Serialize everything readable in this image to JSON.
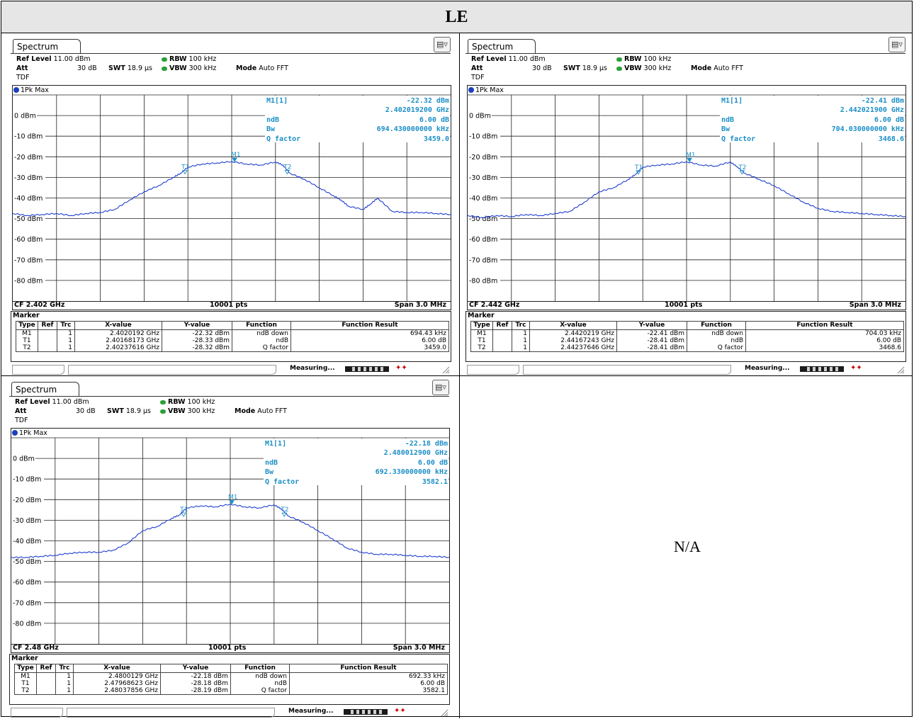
{
  "page_title": "LE",
  "empty_cell": "N/A",
  "colors": {
    "trace": "#1f3fd0",
    "readout": "#1c8fc7",
    "grid": "#222222"
  },
  "common": {
    "tab_label": "Spectrum",
    "ref_level_label": "Ref Level",
    "ref_level": "11.00 dBm",
    "att_label": "Att",
    "att": "30 dB",
    "swt_label": "SWT",
    "swt": "18.9 µs",
    "rbw_label": "RBW",
    "rbw": "100 kHz",
    "vbw_label": "VBW",
    "vbw": "300 kHz",
    "mode_label": "Mode",
    "mode": "Auto FFT",
    "tdf": "TDF",
    "trace_label": "1Pk Max",
    "pts": "10001 pts",
    "span": "Span 3.0 MHz",
    "marker_title": "Marker",
    "col_type": "Type",
    "col_ref": "Ref",
    "col_trc": "Trc",
    "col_x": "X-value",
    "col_y": "Y-value",
    "col_func": "Function",
    "col_result": "Function Result",
    "status": "Measuring..."
  },
  "panels": [
    {
      "cf": "CF 2.402 GHz",
      "readout": {
        "m1": "M1[1]",
        "m1_level": "-22.32 dBm",
        "m1_freq": "2.402019200 GHz",
        "ndb_label": "ndB",
        "ndb": "6.00 dB",
        "bw_label": "Bw",
        "bw": "694.430000000 kHz",
        "q_label": "Q factor",
        "q": "3459.0"
      },
      "markers": [
        {
          "type": "M1",
          "ref": "",
          "trc": "1",
          "x": "2.4020192 GHz",
          "y": "-22.32 dBm",
          "func": "ndB down",
          "result": "694.43 kHz"
        },
        {
          "type": "T1",
          "ref": "",
          "trc": "1",
          "x": "2.40168173 GHz",
          "y": "-28.33 dBm",
          "func": "ndB",
          "result": "6.00 dB"
        },
        {
          "type": "T2",
          "ref": "",
          "trc": "1",
          "x": "2.40237616 GHz",
          "y": "-28.32 dBm",
          "func": "Q factor",
          "result": "3459.0"
        }
      ]
    },
    {
      "cf": "CF 2.442 GHz",
      "readout": {
        "m1": "M1[1]",
        "m1_level": "-22.41 dBm",
        "m1_freq": "2.442021900 GHz",
        "ndb_label": "ndB",
        "ndb": "6.00 dB",
        "bw_label": "Bw",
        "bw": "704.030000000 kHz",
        "q_label": "Q factor",
        "q": "3468.6"
      },
      "markers": [
        {
          "type": "M1",
          "ref": "",
          "trc": "1",
          "x": "2.4420219 GHz",
          "y": "-22.41 dBm",
          "func": "ndB down",
          "result": "704.03 kHz"
        },
        {
          "type": "T1",
          "ref": "",
          "trc": "1",
          "x": "2.44167243 GHz",
          "y": "-28.41 dBm",
          "func": "ndB",
          "result": "6.00 dB"
        },
        {
          "type": "T2",
          "ref": "",
          "trc": "1",
          "x": "2.44237646 GHz",
          "y": "-28.41 dBm",
          "func": "Q factor",
          "result": "3468.6"
        }
      ]
    },
    {
      "cf": "CF 2.48 GHz",
      "readout": {
        "m1": "M1[1]",
        "m1_level": "-22.18 dBm",
        "m1_freq": "2.480012900 GHz",
        "ndb_label": "ndB",
        "ndb": "6.00 dB",
        "bw_label": "Bw",
        "bw": "692.330000000 kHz",
        "q_label": "Q factor",
        "q": "3582.1"
      },
      "markers": [
        {
          "type": "M1",
          "ref": "",
          "trc": "1",
          "x": "2.4800129 GHz",
          "y": "-22.18 dBm",
          "func": "ndB down",
          "result": "692.33 kHz"
        },
        {
          "type": "T1",
          "ref": "",
          "trc": "1",
          "x": "2.47968623 GHz",
          "y": "-28.18 dBm",
          "func": "ndB",
          "result": "6.00 dB"
        },
        {
          "type": "T2",
          "ref": "",
          "trc": "1",
          "x": "2.48037856 GHz",
          "y": "-28.19 dBm",
          "func": "Q factor",
          "result": "3582.1"
        }
      ]
    }
  ],
  "chart_data": [
    {
      "type": "line",
      "xlabel": "",
      "ylabel": "",
      "xlim_mhz_offset": [
        -1.5,
        1.5
      ],
      "ylim": [
        -90,
        10
      ],
      "y_ticks": [
        "0 dBm",
        "-10 dBm",
        "-20 dBm",
        "-30 dBm",
        "-40 dBm",
        "-50 dBm",
        "-60 dBm",
        "-70 dBm",
        "-80 dBm"
      ],
      "grid": true,
      "series": [
        {
          "name": "1Pk Max",
          "x": [
            -1.5,
            -1.4,
            -1.3,
            -1.2,
            -1.1,
            -1.0,
            -0.9,
            -0.8,
            -0.7,
            -0.6,
            -0.5,
            -0.4,
            -0.35,
            -0.3,
            -0.2,
            -0.1,
            0.0,
            0.1,
            0.2,
            0.3,
            0.35,
            0.4,
            0.5,
            0.6,
            0.7,
            0.75,
            0.8,
            0.9,
            0.95,
            1.0,
            1.1,
            1.2,
            1.3,
            1.4,
            1.5
          ],
          "y": [
            -47.5,
            -48.5,
            -48,
            -47.5,
            -48.5,
            -47.5,
            -47,
            -45.5,
            -41,
            -37,
            -34,
            -30,
            -28,
            -25,
            -23.5,
            -23,
            -22.3,
            -23.5,
            -24,
            -22.5,
            -24,
            -28,
            -31,
            -35,
            -39,
            -41,
            -44,
            -45.5,
            -43,
            -40,
            -46.5,
            -47,
            -47,
            -47.5,
            -48
          ]
        }
      ],
      "markers": [
        {
          "label": "M1",
          "x": 0.02,
          "y": -22.32
        },
        {
          "label": "T1",
          "x": -0.32,
          "y": -28.33
        },
        {
          "label": "T2",
          "x": 0.38,
          "y": -28.32
        }
      ]
    },
    {
      "type": "line",
      "xlabel": "",
      "ylabel": "",
      "xlim_mhz_offset": [
        -1.5,
        1.5
      ],
      "ylim": [
        -90,
        10
      ],
      "y_ticks": [
        "0 dBm",
        "-10 dBm",
        "-20 dBm",
        "-30 dBm",
        "-40 dBm",
        "-50 dBm",
        "-60 dBm",
        "-70 dBm",
        "-80 dBm"
      ],
      "grid": true,
      "series": [
        {
          "name": "1Pk Max",
          "x": [
            -1.5,
            -1.4,
            -1.3,
            -1.2,
            -1.1,
            -1.0,
            -0.9,
            -0.8,
            -0.7,
            -0.6,
            -0.5,
            -0.4,
            -0.35,
            -0.3,
            -0.2,
            -0.1,
            0.0,
            0.1,
            0.2,
            0.3,
            0.35,
            0.4,
            0.5,
            0.6,
            0.7,
            0.8,
            0.9,
            1.0,
            1.1,
            1.2,
            1.3,
            1.4,
            1.5
          ],
          "y": [
            -48.5,
            -49.5,
            -48.5,
            -49,
            -48,
            -48.5,
            -47.5,
            -46.5,
            -42,
            -37,
            -35,
            -31,
            -28.5,
            -25,
            -24,
            -23.5,
            -22.4,
            -24,
            -24.5,
            -22.5,
            -25,
            -28,
            -31,
            -34,
            -38,
            -42,
            -45,
            -46.5,
            -47,
            -47.5,
            -48,
            -48.5,
            -49
          ]
        }
      ],
      "markers": [
        {
          "label": "M1",
          "x": 0.02,
          "y": -22.41
        },
        {
          "label": "T1",
          "x": -0.33,
          "y": -28.41
        },
        {
          "label": "T2",
          "x": 0.38,
          "y": -28.41
        }
      ]
    },
    {
      "type": "line",
      "xlabel": "",
      "ylabel": "",
      "xlim_mhz_offset": [
        -1.5,
        1.5
      ],
      "ylim": [
        -90,
        10
      ],
      "y_ticks": [
        "0 dBm",
        "-10 dBm",
        "-20 dBm",
        "-30 dBm",
        "-40 dBm",
        "-50 dBm",
        "-60 dBm",
        "-70 dBm",
        "-80 dBm"
      ],
      "grid": true,
      "series": [
        {
          "name": "1Pk Max",
          "x": [
            -1.5,
            -1.4,
            -1.3,
            -1.2,
            -1.1,
            -1.0,
            -0.9,
            -0.8,
            -0.7,
            -0.6,
            -0.5,
            -0.4,
            -0.35,
            -0.3,
            -0.2,
            -0.1,
            0.0,
            0.1,
            0.2,
            0.3,
            0.35,
            0.4,
            0.5,
            0.6,
            0.7,
            0.8,
            0.9,
            1.0,
            1.1,
            1.2,
            1.3,
            1.4,
            1.5
          ],
          "y": [
            -48,
            -48,
            -47.5,
            -47,
            -46,
            -45.5,
            -45.5,
            -44.5,
            -41,
            -35,
            -33,
            -29,
            -27.5,
            -24,
            -23,
            -23.5,
            -22.2,
            -23.5,
            -24,
            -22.5,
            -24.5,
            -28,
            -31,
            -35,
            -39,
            -43.5,
            -45.5,
            -46.5,
            -46.5,
            -47,
            -47.5,
            -47.5,
            -48
          ]
        }
      ],
      "markers": [
        {
          "label": "M1",
          "x": 0.01,
          "y": -22.18
        },
        {
          "label": "T1",
          "x": -0.32,
          "y": -28.18
        },
        {
          "label": "T2",
          "x": 0.37,
          "y": -28.19
        }
      ]
    }
  ]
}
